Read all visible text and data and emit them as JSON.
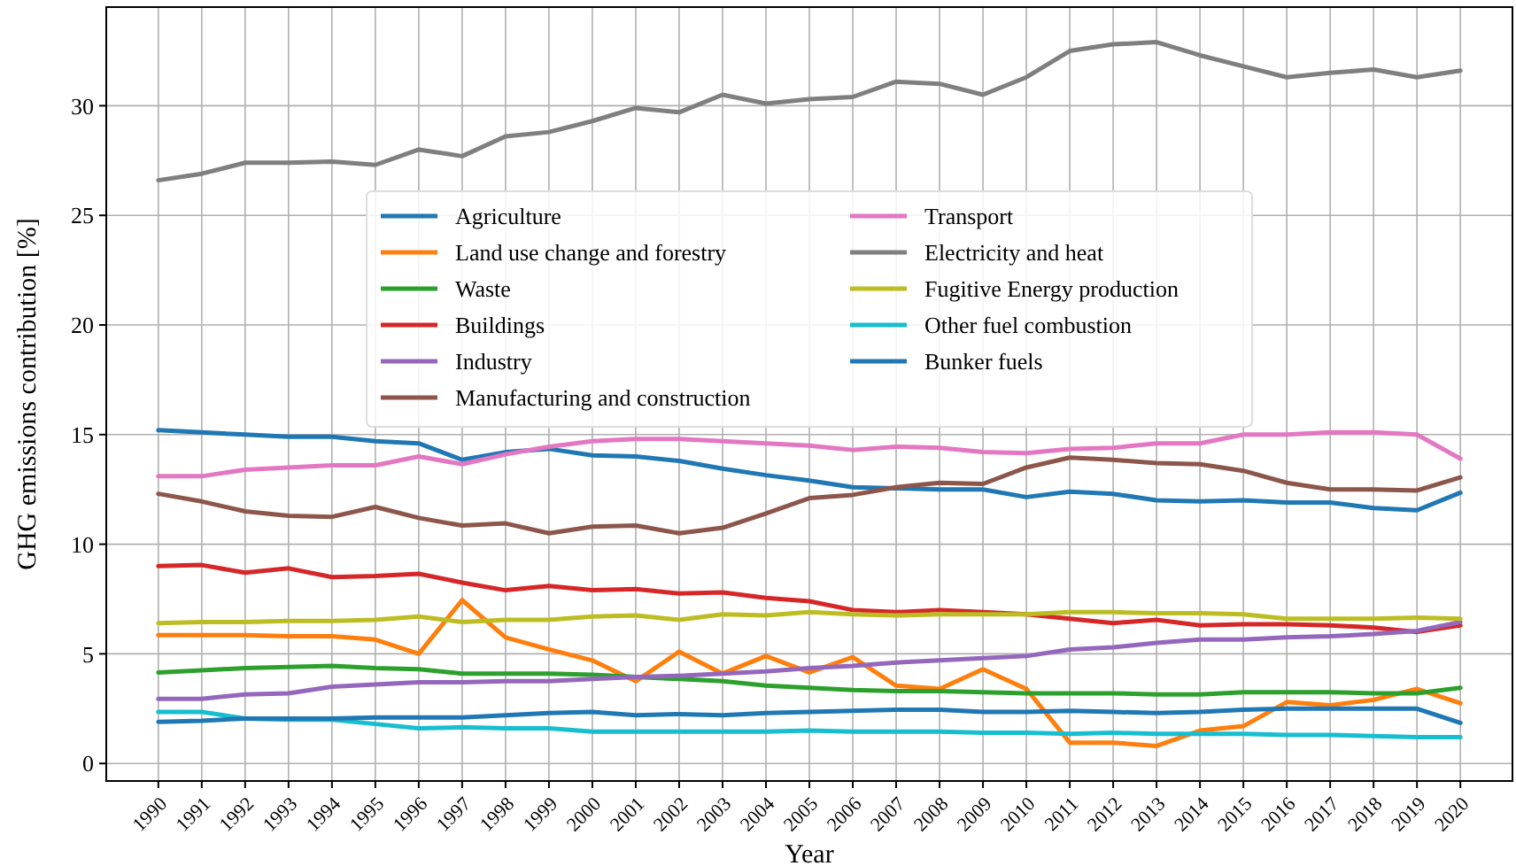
{
  "chart_data": {
    "type": "line",
    "xlabel": "Year",
    "ylabel": "GHG emissions contribution [%]",
    "x": [
      1990,
      1991,
      1992,
      1993,
      1994,
      1995,
      1996,
      1997,
      1998,
      1999,
      2000,
      2001,
      2002,
      2003,
      2004,
      2005,
      2006,
      2007,
      2008,
      2009,
      2010,
      2011,
      2012,
      2013,
      2014,
      2015,
      2016,
      2017,
      2018,
      2019,
      2020
    ],
    "xlim": [
      1988.8,
      2021.2
    ],
    "xticks": [
      1990,
      1991,
      1992,
      1993,
      1994,
      1995,
      1996,
      1997,
      1998,
      1999,
      2000,
      2001,
      2002,
      2003,
      2004,
      2005,
      2006,
      2007,
      2008,
      2009,
      2010,
      2011,
      2012,
      2013,
      2014,
      2015,
      2016,
      2017,
      2018,
      2019,
      2020
    ],
    "ylim": [
      -0.8,
      34.5
    ],
    "yticks": [
      0,
      5,
      10,
      15,
      20,
      25,
      30
    ],
    "grid": true,
    "legend": "top",
    "line_style": "solid",
    "series": [
      {
        "name": "Agriculture",
        "color": "#1f77b4",
        "values": [
          15.2,
          15.1,
          15.0,
          14.9,
          14.9,
          14.7,
          14.6,
          13.85,
          14.2,
          14.35,
          14.05,
          14.0,
          13.8,
          13.45,
          13.15,
          12.9,
          12.6,
          12.55,
          12.5,
          12.5,
          12.15,
          12.4,
          12.3,
          12.0,
          11.95,
          12.0,
          11.9,
          11.9,
          11.65,
          11.55,
          12.35
        ]
      },
      {
        "name": "Land use change and forestry",
        "color": "#ff7f0e",
        "values": [
          5.85,
          5.85,
          5.85,
          5.8,
          5.8,
          5.65,
          5.0,
          7.45,
          5.75,
          5.2,
          4.7,
          3.75,
          5.1,
          4.1,
          4.9,
          4.15,
          4.85,
          3.55,
          3.4,
          4.3,
          3.4,
          0.95,
          0.95,
          0.8,
          1.5,
          1.7,
          2.8,
          2.65,
          2.9,
          3.4,
          2.75
        ]
      },
      {
        "name": "Waste",
        "color": "#2ca02c",
        "values": [
          4.15,
          4.25,
          4.35,
          4.4,
          4.45,
          4.35,
          4.3,
          4.1,
          4.1,
          4.1,
          4.05,
          3.95,
          3.85,
          3.75,
          3.55,
          3.45,
          3.35,
          3.3,
          3.3,
          3.25,
          3.2,
          3.2,
          3.2,
          3.15,
          3.15,
          3.25,
          3.25,
          3.25,
          3.2,
          3.2,
          3.45
        ]
      },
      {
        "name": "Buildings",
        "color": "#d62728",
        "values": [
          9.0,
          9.05,
          8.7,
          8.9,
          8.5,
          8.55,
          8.65,
          8.25,
          7.9,
          8.1,
          7.9,
          7.95,
          7.75,
          7.8,
          7.55,
          7.4,
          7.0,
          6.9,
          7.0,
          6.9,
          6.8,
          6.6,
          6.4,
          6.55,
          6.3,
          6.35,
          6.35,
          6.3,
          6.2,
          6.0,
          6.3
        ]
      },
      {
        "name": "Industry",
        "color": "#9467bd",
        "values": [
          2.95,
          2.95,
          3.15,
          3.2,
          3.5,
          3.6,
          3.7,
          3.7,
          3.75,
          3.75,
          3.85,
          3.95,
          4.0,
          4.1,
          4.2,
          4.35,
          4.45,
          4.6,
          4.7,
          4.8,
          4.9,
          5.2,
          5.3,
          5.5,
          5.65,
          5.65,
          5.75,
          5.8,
          5.9,
          6.05,
          6.45
        ]
      },
      {
        "name": "Manufacturing and construction",
        "color": "#8c564b",
        "values": [
          12.3,
          11.95,
          11.5,
          11.3,
          11.25,
          11.7,
          11.2,
          10.85,
          10.95,
          10.5,
          10.8,
          10.85,
          10.5,
          10.75,
          11.4,
          12.1,
          12.25,
          12.6,
          12.8,
          12.75,
          13.5,
          13.95,
          13.85,
          13.7,
          13.65,
          13.35,
          12.8,
          12.5,
          12.5,
          12.45,
          13.05
        ]
      },
      {
        "name": "Transport",
        "color": "#e377c2",
        "values": [
          13.1,
          13.1,
          13.4,
          13.5,
          13.6,
          13.6,
          14.0,
          13.65,
          14.1,
          14.45,
          14.7,
          14.8,
          14.8,
          14.7,
          14.6,
          14.5,
          14.3,
          14.45,
          14.4,
          14.2,
          14.15,
          14.35,
          14.4,
          14.6,
          14.6,
          15.0,
          15.0,
          15.1,
          15.1,
          15.0,
          13.9
        ]
      },
      {
        "name": "Electricity and heat",
        "color": "#7f7f7f",
        "values": [
          26.6,
          26.9,
          27.4,
          27.4,
          27.45,
          27.3,
          28.0,
          27.7,
          28.6,
          28.8,
          29.3,
          29.9,
          29.7,
          30.5,
          30.1,
          30.3,
          30.4,
          31.1,
          31.0,
          30.5,
          31.3,
          32.5,
          32.8,
          32.9,
          32.3,
          31.8,
          31.3,
          31.5,
          31.65,
          31.3,
          31.6
        ]
      },
      {
        "name": "Fugitive Energy production",
        "color": "#bcbd22",
        "values": [
          6.4,
          6.45,
          6.45,
          6.5,
          6.5,
          6.55,
          6.7,
          6.45,
          6.55,
          6.55,
          6.7,
          6.75,
          6.55,
          6.8,
          6.75,
          6.9,
          6.8,
          6.75,
          6.8,
          6.8,
          6.8,
          6.9,
          6.9,
          6.85,
          6.85,
          6.8,
          6.6,
          6.6,
          6.6,
          6.65,
          6.6
        ]
      },
      {
        "name": "Other fuel combustion",
        "color": "#17becf",
        "values": [
          2.35,
          2.35,
          2.05,
          2.0,
          2.0,
          1.8,
          1.6,
          1.65,
          1.6,
          1.6,
          1.45,
          1.45,
          1.45,
          1.45,
          1.45,
          1.5,
          1.45,
          1.45,
          1.45,
          1.4,
          1.4,
          1.35,
          1.4,
          1.35,
          1.35,
          1.35,
          1.3,
          1.3,
          1.25,
          1.2,
          1.2
        ]
      },
      {
        "name": "Bunker fuels",
        "color": "#1f77b4",
        "values": [
          1.9,
          1.95,
          2.05,
          2.05,
          2.05,
          2.1,
          2.1,
          2.1,
          2.2,
          2.3,
          2.35,
          2.2,
          2.25,
          2.2,
          2.3,
          2.35,
          2.4,
          2.45,
          2.45,
          2.35,
          2.35,
          2.4,
          2.35,
          2.3,
          2.35,
          2.45,
          2.5,
          2.5,
          2.5,
          2.5,
          1.85
        ]
      }
    ]
  }
}
